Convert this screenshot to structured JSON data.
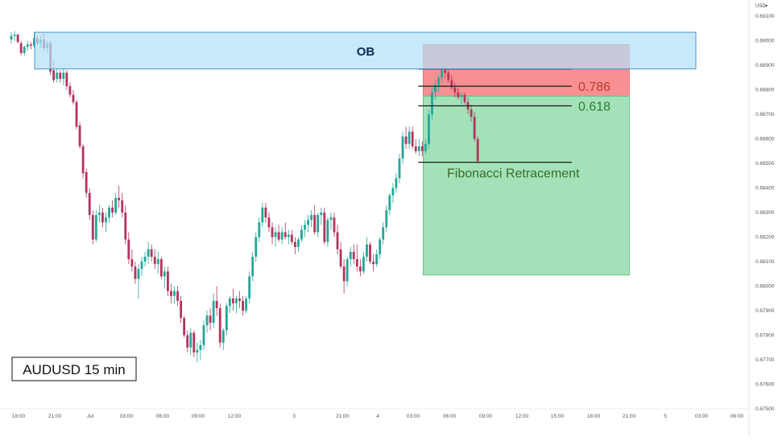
{
  "chart_data": {
    "type": "candlestick",
    "symbol_label": "AUDUSD 15 min",
    "currency_label": "USD",
    "ylim": [
      0.675,
      0.6915
    ],
    "y_ticks": [
      "0.69100",
      "0.69000",
      "0.68900",
      "0.68800",
      "0.68700",
      "0.68600",
      "0.68500",
      "0.68400",
      "0.68300",
      "0.68200",
      "0.68100",
      "0.68000",
      "0.67900",
      "0.67800",
      "0.67700",
      "0.67600",
      "0.67500"
    ],
    "x_ticks": [
      "18:00",
      "21:00",
      "Jul",
      "03:00",
      "06:00",
      "09:00",
      "12:00",
      "3",
      "21:00",
      "4",
      "03:00",
      "06:00",
      "09:00",
      "12:00",
      "15:00",
      "18:00",
      "21:00",
      "5",
      "03:00",
      "06:00"
    ],
    "colors": {
      "up": "#26a69a",
      "down": "#b2365c",
      "ob_fill": "#b3e0f7",
      "ob_border": "#2a7fb8",
      "stop_fill": "#f77c80",
      "target_fill": "#9ee0b4",
      "fib_line": "#1a1a1a"
    },
    "order_block": {
      "label": "OB",
      "top": 0.69035,
      "bottom": 0.68885,
      "start_bar": 0,
      "end_bar": 187
    },
    "position": {
      "entry": 0.68775,
      "stop": 0.68985,
      "target": 0.68045,
      "start_bar": 127,
      "end_bar": 190
    },
    "fibonacci": {
      "label": "Fibonacci Retracement",
      "levels": [
        {
          "label": "0.786",
          "value": 0.68815,
          "color": "#c0392b"
        },
        {
          "label": "0.618",
          "value": 0.68735,
          "color": "#2e7d32"
        },
        {
          "label": "",
          "value": 0.68885,
          "color": "#1a1a1a"
        },
        {
          "label": "",
          "value": 0.68505,
          "color": "#1a1a1a"
        }
      ],
      "start_bar": 125,
      "end_bar": 155
    },
    "candles": [
      [
        0.69005,
        0.69035,
        0.6899,
        0.6902
      ],
      [
        0.6902,
        0.6904,
        0.69,
        0.69025
      ],
      [
        0.69025,
        0.6903,
        0.6899,
        0.68995
      ],
      [
        0.6899,
        0.69,
        0.6894,
        0.6895
      ],
      [
        0.6895,
        0.6898,
        0.6894,
        0.68975
      ],
      [
        0.68975,
        0.69,
        0.6896,
        0.68985
      ],
      [
        0.68985,
        0.68995,
        0.68965,
        0.6898
      ],
      [
        0.6898,
        0.69035,
        0.6897,
        0.6901
      ],
      [
        0.6901,
        0.6902,
        0.6898,
        0.6899
      ],
      [
        0.6899,
        0.6902,
        0.6897,
        0.69005
      ],
      [
        0.69005,
        0.6903,
        0.6896,
        0.6897
      ],
      [
        0.6897,
        0.69,
        0.6895,
        0.6899
      ],
      [
        0.6899,
        0.69,
        0.6886,
        0.68875
      ],
      [
        0.6888,
        0.6892,
        0.6883,
        0.6884
      ],
      [
        0.68845,
        0.6889,
        0.6883,
        0.6887
      ],
      [
        0.6887,
        0.6888,
        0.6883,
        0.68845
      ],
      [
        0.68845,
        0.6889,
        0.6882,
        0.6887
      ],
      [
        0.6887,
        0.6888,
        0.688,
        0.68815
      ],
      [
        0.68815,
        0.6883,
        0.6877,
        0.6878
      ],
      [
        0.6878,
        0.688,
        0.6874,
        0.6875
      ],
      [
        0.6875,
        0.6876,
        0.6864,
        0.6865
      ],
      [
        0.68655,
        0.6867,
        0.6856,
        0.6857
      ],
      [
        0.6857,
        0.6858,
        0.6844,
        0.6846
      ],
      [
        0.68465,
        0.6848,
        0.6836,
        0.6838
      ],
      [
        0.6838,
        0.684,
        0.6827,
        0.6829
      ],
      [
        0.6829,
        0.6831,
        0.6817,
        0.6819
      ],
      [
        0.6819,
        0.6831,
        0.6818,
        0.6829
      ],
      [
        0.6829,
        0.6833,
        0.6826,
        0.683
      ],
      [
        0.683,
        0.6832,
        0.6824,
        0.6826
      ],
      [
        0.6826,
        0.683,
        0.6822,
        0.6828
      ],
      [
        0.6828,
        0.6833,
        0.6826,
        0.6832
      ],
      [
        0.6832,
        0.6835,
        0.6828,
        0.683
      ],
      [
        0.683,
        0.6838,
        0.6829,
        0.6836
      ],
      [
        0.6836,
        0.6841,
        0.6832,
        0.6835
      ],
      [
        0.6835,
        0.6838,
        0.6828,
        0.683
      ],
      [
        0.683,
        0.6833,
        0.6817,
        0.6819
      ],
      [
        0.6819,
        0.6822,
        0.6809,
        0.6811
      ],
      [
        0.6811,
        0.6815,
        0.6806,
        0.6808
      ],
      [
        0.6808,
        0.681,
        0.6801,
        0.6803
      ],
      [
        0.6803,
        0.6809,
        0.6795,
        0.6807
      ],
      [
        0.6807,
        0.6812,
        0.6804,
        0.681
      ],
      [
        0.681,
        0.6814,
        0.6808,
        0.6812
      ],
      [
        0.6812,
        0.6818,
        0.6809,
        0.6815
      ],
      [
        0.6815,
        0.6817,
        0.681,
        0.6812
      ],
      [
        0.6812,
        0.6815,
        0.6807,
        0.6809
      ],
      [
        0.6809,
        0.6814,
        0.6805,
        0.6811
      ],
      [
        0.6811,
        0.6812,
        0.6803,
        0.6804
      ],
      [
        0.6804,
        0.6808,
        0.6799,
        0.6806
      ],
      [
        0.6806,
        0.6808,
        0.6796,
        0.6798
      ],
      [
        0.6798,
        0.6801,
        0.6793,
        0.6796
      ],
      [
        0.6796,
        0.68,
        0.6793,
        0.6798
      ],
      [
        0.6798,
        0.68,
        0.6792,
        0.6794
      ],
      [
        0.6794,
        0.6796,
        0.6785,
        0.6787
      ],
      [
        0.6787,
        0.6788,
        0.6779,
        0.678
      ],
      [
        0.678,
        0.6782,
        0.6773,
        0.6775
      ],
      [
        0.6775,
        0.6783,
        0.6772,
        0.6781
      ],
      [
        0.6781,
        0.6782,
        0.6771,
        0.6773
      ],
      [
        0.6773,
        0.6777,
        0.6769,
        0.6774
      ],
      [
        0.6774,
        0.6778,
        0.677,
        0.6776
      ],
      [
        0.6776,
        0.6786,
        0.6774,
        0.6784
      ],
      [
        0.6784,
        0.679,
        0.6781,
        0.6788
      ],
      [
        0.6788,
        0.6791,
        0.6782,
        0.6785
      ],
      [
        0.6785,
        0.6797,
        0.6783,
        0.6794
      ],
      [
        0.6794,
        0.68,
        0.6788,
        0.6791
      ],
      [
        0.6791,
        0.6793,
        0.6775,
        0.6777
      ],
      [
        0.6777,
        0.6783,
        0.6774,
        0.6782
      ],
      [
        0.6782,
        0.6793,
        0.678,
        0.6792
      ],
      [
        0.6792,
        0.6796,
        0.6789,
        0.6795
      ],
      [
        0.6795,
        0.6799,
        0.679,
        0.6793
      ],
      [
        0.6793,
        0.6796,
        0.6789,
        0.6795
      ],
      [
        0.6795,
        0.6798,
        0.6791,
        0.6794
      ],
      [
        0.6794,
        0.6796,
        0.6788,
        0.679
      ],
      [
        0.679,
        0.6796,
        0.6789,
        0.6795
      ],
      [
        0.6795,
        0.6806,
        0.6793,
        0.6804
      ],
      [
        0.6804,
        0.6814,
        0.6802,
        0.6812
      ],
      [
        0.6812,
        0.6822,
        0.681,
        0.682
      ],
      [
        0.682,
        0.6828,
        0.6818,
        0.6826
      ],
      [
        0.6826,
        0.6834,
        0.6824,
        0.6832
      ],
      [
        0.6832,
        0.6834,
        0.6826,
        0.6828
      ],
      [
        0.6828,
        0.683,
        0.6822,
        0.6824
      ],
      [
        0.6824,
        0.6826,
        0.6817,
        0.682
      ],
      [
        0.682,
        0.6824,
        0.6816,
        0.6822
      ],
      [
        0.6822,
        0.6825,
        0.6818,
        0.6819
      ],
      [
        0.6819,
        0.6824,
        0.6817,
        0.6822
      ],
      [
        0.6822,
        0.6826,
        0.6819,
        0.682
      ],
      [
        0.682,
        0.6823,
        0.6817,
        0.6821
      ],
      [
        0.6821,
        0.6823,
        0.6817,
        0.6818
      ],
      [
        0.6818,
        0.682,
        0.6813,
        0.6816
      ],
      [
        0.6816,
        0.682,
        0.6814,
        0.6819
      ],
      [
        0.6819,
        0.6825,
        0.6818,
        0.6823
      ],
      [
        0.6823,
        0.6827,
        0.682,
        0.6825
      ],
      [
        0.6825,
        0.6829,
        0.6822,
        0.6827
      ],
      [
        0.6827,
        0.6831,
        0.6824,
        0.6829
      ],
      [
        0.6829,
        0.6833,
        0.6821,
        0.6822
      ],
      [
        0.6822,
        0.683,
        0.682,
        0.6829
      ],
      [
        0.6829,
        0.6832,
        0.6825,
        0.683
      ],
      [
        0.683,
        0.6832,
        0.6817,
        0.6818
      ],
      [
        0.6818,
        0.6828,
        0.6816,
        0.6827
      ],
      [
        0.6827,
        0.683,
        0.6823,
        0.6828
      ],
      [
        0.6828,
        0.683,
        0.682,
        0.6822
      ],
      [
        0.6822,
        0.6825,
        0.6813,
        0.6815
      ],
      [
        0.6815,
        0.6818,
        0.6807,
        0.6808
      ],
      [
        0.6808,
        0.6811,
        0.6797,
        0.6802
      ],
      [
        0.6802,
        0.6812,
        0.68,
        0.6811
      ],
      [
        0.6811,
        0.6816,
        0.6808,
        0.6814
      ],
      [
        0.6814,
        0.6817,
        0.6809,
        0.6811
      ],
      [
        0.6811,
        0.6817,
        0.6806,
        0.6808
      ],
      [
        0.6808,
        0.6811,
        0.6804,
        0.6806
      ],
      [
        0.6806,
        0.6814,
        0.6805,
        0.6812
      ],
      [
        0.6812,
        0.682,
        0.681,
        0.6817
      ],
      [
        0.6817,
        0.6818,
        0.6809,
        0.681
      ],
      [
        0.681,
        0.6813,
        0.6806,
        0.6809
      ],
      [
        0.6809,
        0.6815,
        0.6808,
        0.6813
      ],
      [
        0.6813,
        0.682,
        0.6811,
        0.6819
      ],
      [
        0.6819,
        0.6826,
        0.6817,
        0.6824
      ],
      [
        0.6824,
        0.6833,
        0.6822,
        0.6831
      ],
      [
        0.6831,
        0.6838,
        0.6829,
        0.6837
      ],
      [
        0.6837,
        0.6842,
        0.6834,
        0.684
      ],
      [
        0.684,
        0.6846,
        0.6838,
        0.6844
      ],
      [
        0.6844,
        0.6854,
        0.6842,
        0.6852
      ],
      [
        0.6852,
        0.6863,
        0.685,
        0.6861
      ],
      [
        0.6861,
        0.6865,
        0.6856,
        0.6858
      ],
      [
        0.6858,
        0.6865,
        0.6856,
        0.6863
      ],
      [
        0.6863,
        0.6865,
        0.6856,
        0.6857
      ],
      [
        0.6857,
        0.686,
        0.6854,
        0.6855
      ],
      [
        0.6855,
        0.686,
        0.6853,
        0.6857
      ],
      [
        0.6857,
        0.6859,
        0.6853,
        0.6855
      ],
      [
        0.6855,
        0.686,
        0.6854,
        0.6858
      ],
      [
        0.6858,
        0.6872,
        0.6856,
        0.687
      ],
      [
        0.687,
        0.6881,
        0.6868,
        0.6879
      ],
      [
        0.6879,
        0.6884,
        0.6876,
        0.6882
      ],
      [
        0.6882,
        0.6886,
        0.6879,
        0.6885
      ],
      [
        0.6885,
        0.689,
        0.6883,
        0.6888
      ],
      [
        0.6888,
        0.68895,
        0.6885,
        0.6887
      ],
      [
        0.6887,
        0.6888,
        0.6883,
        0.6884
      ],
      [
        0.6884,
        0.6886,
        0.688,
        0.6881
      ],
      [
        0.6881,
        0.6883,
        0.6877,
        0.6879
      ],
      [
        0.6879,
        0.6881,
        0.6876,
        0.6877
      ],
      [
        0.6877,
        0.6879,
        0.6874,
        0.6878
      ],
      [
        0.6878,
        0.6879,
        0.6874,
        0.6875
      ],
      [
        0.6875,
        0.6877,
        0.687,
        0.6872
      ],
      [
        0.6872,
        0.6874,
        0.6867,
        0.6869
      ],
      [
        0.6869,
        0.6871,
        0.6859,
        0.686
      ],
      [
        0.686,
        0.6861,
        0.685,
        0.6851
      ]
    ]
  }
}
